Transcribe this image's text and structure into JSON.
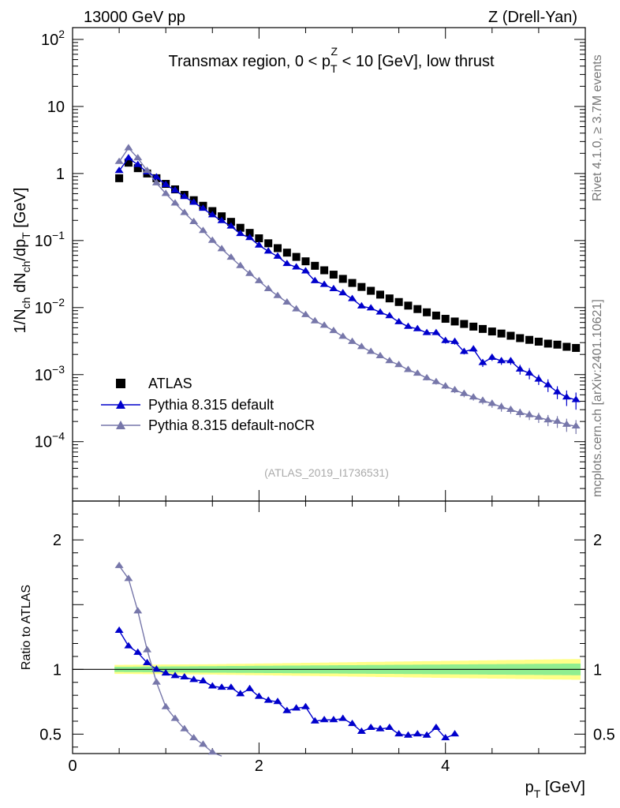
{
  "header": {
    "left": "13000 GeV pp",
    "right": "Z (Drell-Yan)"
  },
  "sidebar": {
    "rivet": "Rivet 4.1.0, ≥ 3.7M events",
    "mcplots": "mcplots.cern.ch [arXiv:2401.10621]"
  },
  "chart_data": {
    "type": "scatter",
    "title": "Transmax region, 0 < p_T^Z < 10 [GeV], low thrust",
    "title_parts": {
      "a": "Transmax region, 0 < p",
      "sub": "T",
      "sup": "Z",
      "b": " < 10 [GeV], low thrust"
    },
    "watermark": "(ATLAS_2019_I1736531)",
    "xlabel": "p_T [GeV]",
    "xlabel_parts": {
      "main": "p",
      "sub": "T",
      "unit": " [GeV]"
    },
    "ylabel": "1/N_ch dN_ch/dp_T [GeV]",
    "ylabel_parts": {
      "a": "1/N",
      "s1": "ch",
      "b": " dN",
      "s2": "ch",
      "c": "/dp",
      "s3": "T",
      "d": " [GeV]"
    },
    "ratio_ylabel": "Ratio to ATLAS",
    "xlim": [
      0,
      5.5
    ],
    "ylim_log": [
      1.3e-05,
      150
    ],
    "ratio_ylim": [
      0.35,
      2.3
    ],
    "x_ticks": [
      "0",
      "2",
      "4"
    ],
    "y_ticks": [
      {
        "base": "10",
        "exp": "2"
      },
      {
        "base": "10",
        "exp": ""
      },
      {
        "base": "1",
        "exp": ""
      },
      {
        "base": "10",
        "exp": "−1"
      },
      {
        "base": "10",
        "exp": "−2"
      },
      {
        "base": "10",
        "exp": "−3"
      },
      {
        "base": "10",
        "exp": "−4"
      }
    ],
    "ratio_ticks": [
      "0.5",
      "1",
      "2"
    ],
    "legend": [
      "ATLAS",
      "Pythia 8.315 default",
      "Pythia 8.315 default-noCR"
    ],
    "x": [
      0.5,
      0.6,
      0.7,
      0.8,
      0.9,
      1.0,
      1.1,
      1.2,
      1.3,
      1.4,
      1.5,
      1.6,
      1.7,
      1.8,
      1.9,
      2.0,
      2.1,
      2.2,
      2.3,
      2.4,
      2.5,
      2.6,
      2.7,
      2.8,
      2.9,
      3.0,
      3.1,
      3.2,
      3.3,
      3.4,
      3.5,
      3.6,
      3.7,
      3.8,
      3.9,
      4.0,
      4.1,
      4.2,
      4.3,
      4.4,
      4.5,
      4.6,
      4.7,
      4.8,
      4.9,
      5.0,
      5.1,
      5.2,
      5.3,
      5.4
    ],
    "series": [
      {
        "name": "ATLAS",
        "color": "#000000",
        "marker": "square",
        "values": [
          0.85,
          1.45,
          1.2,
          1.0,
          0.85,
          0.7,
          0.58,
          0.48,
          0.4,
          0.33,
          0.275,
          0.23,
          0.19,
          0.155,
          0.13,
          0.108,
          0.091,
          0.077,
          0.066,
          0.057,
          0.049,
          0.042,
          0.036,
          0.031,
          0.0268,
          0.0233,
          0.0203,
          0.0178,
          0.0156,
          0.0137,
          0.0121,
          0.0107,
          0.0095,
          0.0085,
          0.0076,
          0.0068,
          0.0062,
          0.0057,
          0.0052,
          0.0048,
          0.0044,
          0.0041,
          0.0038,
          0.0035,
          0.0033,
          0.0031,
          0.0029,
          0.0028,
          0.0026,
          0.0025
        ]
      },
      {
        "name": "Pythia 8.315 default",
        "color": "#0000cc",
        "marker": "triangle",
        "values": [
          1.1,
          1.7,
          1.35,
          1.05,
          0.88,
          0.68,
          0.56,
          0.45,
          0.37,
          0.3,
          0.24,
          0.197,
          0.163,
          0.126,
          0.11,
          0.085,
          0.069,
          0.058,
          0.045,
          0.04,
          0.035,
          0.025,
          0.022,
          0.019,
          0.0165,
          0.0135,
          0.0105,
          0.0098,
          0.0085,
          0.0075,
          0.0061,
          0.0052,
          0.0048,
          0.0042,
          0.0042,
          0.0032,
          0.0031,
          0.0022,
          0.0024,
          0.0015,
          0.0018,
          0.0016,
          0.0016,
          0.0012,
          0.00105,
          0.00085,
          0.0007,
          0.00055,
          0.00046,
          0.00042
        ],
        "errors": [
          0.04,
          0.05,
          0.04,
          0.03,
          0.03,
          0.02,
          0.02,
          0.015,
          0.01,
          0.01,
          0.008,
          0.006,
          0.005,
          0.004,
          0.003,
          0.003,
          0.002,
          0.002,
          0.0015,
          0.0012,
          0.001,
          0.0008,
          0.0007,
          0.0006,
          0.0006,
          0.0005,
          0.0004,
          0.0004,
          0.0004,
          0.0003,
          0.0003,
          0.0003,
          0.0003,
          0.0003,
          0.0003,
          0.0003,
          0.0003,
          0.0002,
          0.0002,
          0.0002,
          0.0002,
          0.0002,
          0.0002,
          0.0002,
          0.0002,
          0.00015,
          0.00015,
          0.00012,
          0.00012,
          0.00012
        ]
      },
      {
        "name": "Pythia 8.315 default-noCR",
        "color": "#7777aa",
        "marker": "triangle",
        "values": [
          1.5,
          2.4,
          1.7,
          1.1,
          0.72,
          0.5,
          0.36,
          0.26,
          0.19,
          0.14,
          0.1,
          0.075,
          0.056,
          0.042,
          0.032,
          0.025,
          0.019,
          0.015,
          0.012,
          0.0095,
          0.0078,
          0.0063,
          0.0054,
          0.0045,
          0.0037,
          0.0031,
          0.0026,
          0.0022,
          0.0019,
          0.0016,
          0.0014,
          0.00118,
          0.00104,
          0.00089,
          0.00078,
          0.00067,
          0.00059,
          0.00052,
          0.00046,
          0.00041,
          0.00037,
          0.00033,
          0.0003,
          0.00027,
          0.00025,
          0.00023,
          0.00021,
          0.0002,
          0.00018,
          0.00017
        ],
        "errors": [
          0.05,
          0.06,
          0.04,
          0.03,
          0.02,
          0.015,
          0.01,
          0.008,
          0.006,
          0.004,
          0.003,
          0.002,
          0.0016,
          0.0012,
          0.001,
          0.0008,
          0.0006,
          0.0005,
          0.0004,
          0.0003,
          0.0003,
          0.0002,
          0.0002,
          0.0002,
          0.00015,
          0.00015,
          0.00012,
          0.0001,
          0.0001,
          9e-05,
          8e-05,
          8e-05,
          7e-05,
          7e-05,
          7e-05,
          6e-05,
          6e-05,
          6e-05,
          5e-05,
          5e-05,
          5e-05,
          5e-05,
          4e-05,
          4e-05,
          4e-05,
          4e-05,
          4e-05,
          4e-05,
          4e-05,
          4e-05
        ]
      }
    ],
    "ratio": [
      {
        "name": "Pythia 8.315 default",
        "values": [
          1.3,
          1.18,
          1.13,
          1.05,
          1.0,
          0.97,
          0.95,
          0.94,
          0.92,
          0.91,
          0.87,
          0.86,
          0.86,
          0.81,
          0.85,
          0.79,
          0.76,
          0.75,
          0.68,
          0.7,
          0.71,
          0.6,
          0.61,
          0.61,
          0.62,
          0.58,
          0.52,
          0.55,
          0.54,
          0.55,
          0.5,
          0.49,
          0.5,
          0.49,
          0.55,
          0.47,
          0.5
        ]
      },
      {
        "name": "Pythia 8.315 default-noCR",
        "values": [
          1.8,
          1.7,
          1.45,
          1.15,
          0.9,
          0.71,
          0.62,
          0.54,
          0.47,
          0.42,
          0.36,
          0.33
        ]
      }
    ],
    "ratio_band": {
      "inner": "#90ee90",
      "outer": "#ffff88"
    },
    "ratio_band_halfwidth": {
      "inner": [
        0.02,
        0.025,
        0.03,
        0.035,
        0.04,
        0.045
      ],
      "outer": [
        0.035,
        0.04,
        0.05,
        0.06,
        0.07,
        0.08
      ]
    }
  }
}
